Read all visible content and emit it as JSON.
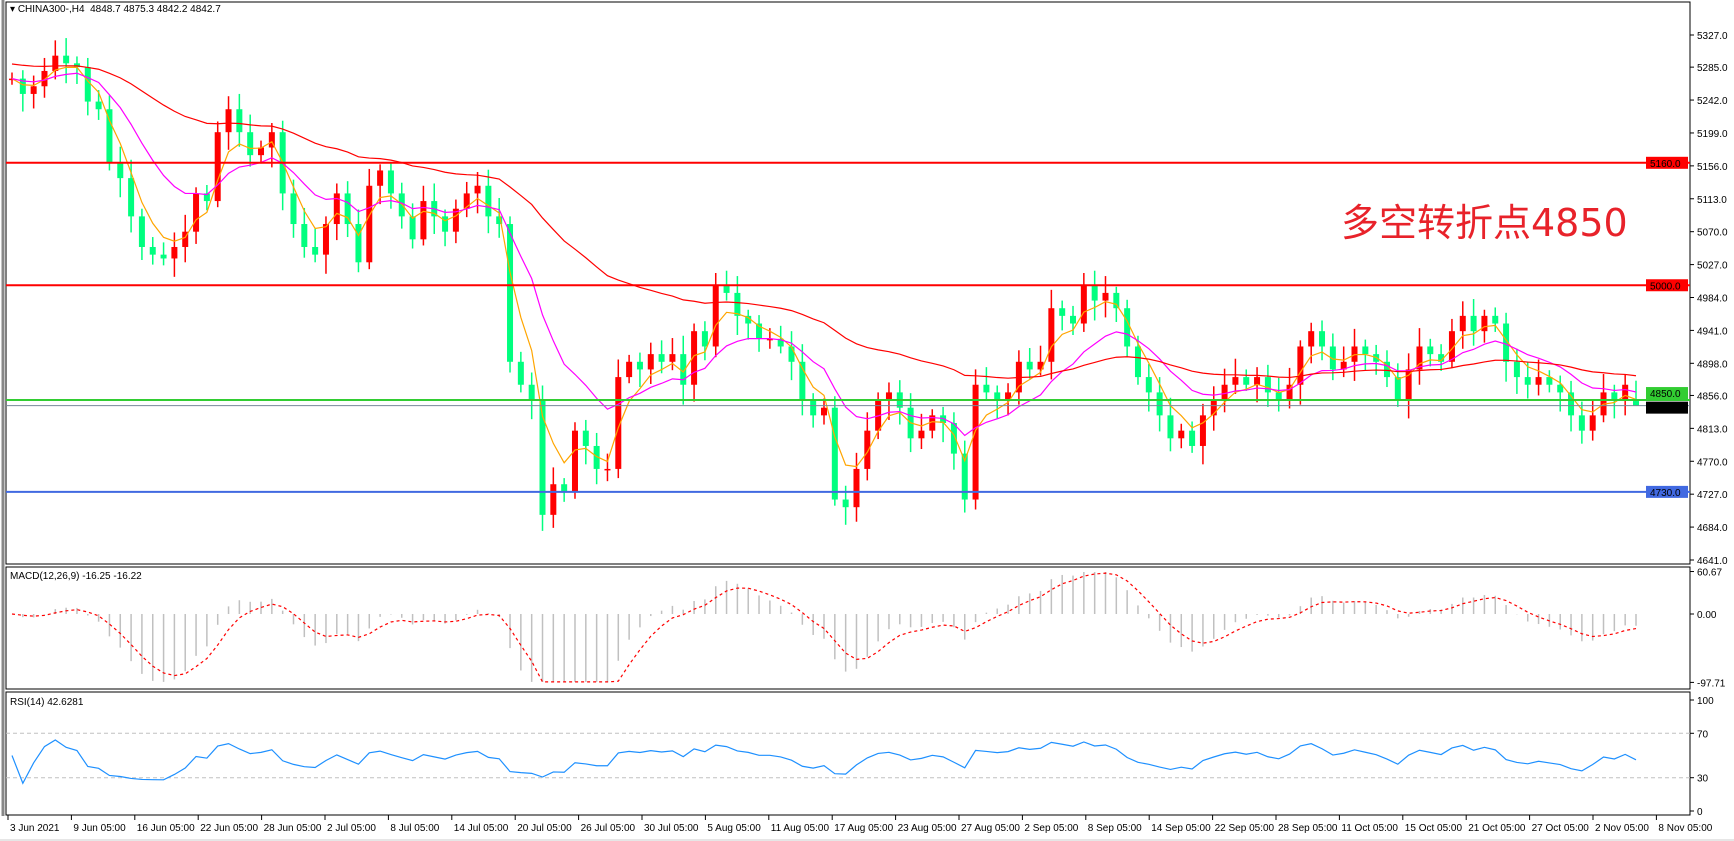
{
  "header": {
    "symbol": "CHINA300-,H4",
    "ohlc": "4848.7 4875.3 4842.2 4842.7"
  },
  "annotation": "多空转折点4850",
  "colors": {
    "bull": "#ff0000",
    "bear": "#00ff7f",
    "ma_fast": "#ffa500",
    "ma_mid": "#ff00ff",
    "ma_slow": "#ff0000",
    "macd_signal": "#ff0000",
    "macd_hist": "#c0c0c0",
    "rsi": "#1e90ff",
    "level_red": "#ff0000",
    "level_green": "#32cd32",
    "level_blue": "#4169e1",
    "price_line": "#778899"
  },
  "chart_data": [
    {
      "type": "candlestick",
      "title": "CHINA300-,H4",
      "ylim": [
        4641.0,
        5350.0
      ],
      "y_ticks": [
        "5327.0",
        "5285.0",
        "5242.0",
        "5199.0",
        "5156.0",
        "5113.0",
        "5070.0",
        "5027.0",
        "4984.0",
        "4941.0",
        "4898.0",
        "4856.0",
        "4813.0",
        "4770.0",
        "4727.0",
        "4684.0",
        "4641.0"
      ],
      "x_ticks": [
        "3 Jun 2021",
        "9 Jun 05:00",
        "16 Jun 05:00",
        "22 Jun 05:00",
        "28 Jun 05:00",
        "2 Jul 05:00",
        "8 Jul 05:00",
        "14 Jul 05:00",
        "20 Jul 05:00",
        "26 Jul 05:00",
        "30 Jul 05:00",
        "5 Aug 05:00",
        "11 Aug 05:00",
        "17 Aug 05:00",
        "23 Aug 05:00",
        "27 Aug 05:00",
        "2 Sep 05:00",
        "8 Sep 05:00",
        "14 Sep 05:00",
        "22 Sep 05:00",
        "28 Sep 05:00",
        "11 Oct 05:00",
        "15 Oct 05:00",
        "21 Oct 05:00",
        "27 Oct 05:00",
        "2 Nov 05:00",
        "8 Nov 05:00"
      ],
      "close": [
        5270,
        5250,
        5260,
        5280,
        5300,
        5290,
        5285,
        5240,
        5230,
        5160,
        5140,
        5090,
        5050,
        5040,
        5035,
        5050,
        5070,
        5120,
        5110,
        5200,
        5230,
        5200,
        5170,
        5180,
        5200,
        5120,
        5080,
        5050,
        5040,
        5080,
        5120,
        5080,
        5030,
        5130,
        5150,
        5120,
        5090,
        5060,
        5110,
        5090,
        5070,
        5100,
        5120,
        5130,
        5090,
        5080,
        4900,
        4870,
        4850,
        4700,
        4740,
        4730,
        4810,
        4790,
        4760,
        4760,
        4880,
        4900,
        4890,
        4910,
        4900,
        4910,
        4870,
        4940,
        4920,
        5000,
        4990,
        4960,
        4950,
        4930,
        4930,
        4920,
        4900,
        4850,
        4830,
        4840,
        4720,
        4710,
        4760,
        4810,
        4850,
        4860,
        4840,
        4800,
        4810,
        4830,
        4820,
        4780,
        4720,
        4870,
        4860,
        4850,
        4860,
        4900,
        4890,
        4900,
        4970,
        4960,
        4950,
        5000,
        4980,
        4990,
        4970,
        4920,
        4880,
        4860,
        4830,
        4800,
        4810,
        4790,
        4830,
        4850,
        4870,
        4880,
        4870,
        4880,
        4860,
        4850,
        4870,
        4920,
        4940,
        4920,
        4890,
        4900,
        4920,
        4910,
        4900,
        4880,
        4850,
        4890,
        4920,
        4910,
        4900,
        4940,
        4960,
        4940,
        4960,
        4950,
        4900,
        4880,
        4870,
        4880,
        4870,
        4860,
        4830,
        4810,
        4830,
        4860,
        4850,
        4870,
        4842.7
      ],
      "last_candle": {
        "open": 4848.7,
        "high": 4875.3,
        "low": 4842.2,
        "close": 4842.7
      },
      "levels": [
        {
          "value": 5160.0,
          "label": "5160.0",
          "color": "#ff0000"
        },
        {
          "value": 5000.0,
          "label": "5000.0",
          "color": "#ff0000"
        },
        {
          "value": 4850.0,
          "label": "4850.0",
          "color": "#32cd32"
        },
        {
          "value": 4730.0,
          "label": "4730.0",
          "color": "#4169e1"
        }
      ],
      "current_price": {
        "value": 4842.7,
        "label": "4842.7"
      }
    },
    {
      "type": "macd",
      "title": "MACD(12,26,9) -16.25 -16.22",
      "ylim": [
        -97.71,
        60.67
      ],
      "y_ticks": [
        "60.67",
        "0.00",
        "-97.71"
      ]
    },
    {
      "type": "line",
      "title": "RSI(14) 42.6281",
      "ylim": [
        0,
        100
      ],
      "y_ticks": [
        "100",
        "70",
        "30",
        "0"
      ],
      "reference_lines": [
        70,
        30
      ]
    }
  ]
}
